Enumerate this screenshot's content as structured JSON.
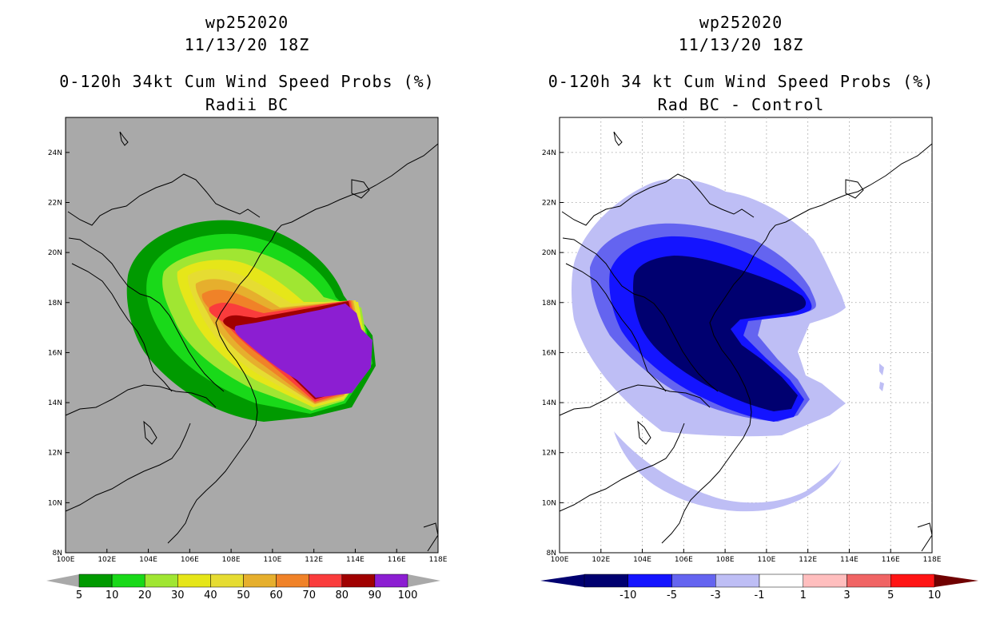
{
  "left_panel": {
    "storm_id": "wp252020",
    "datetime": "11/13/20 18Z",
    "product": "0-120h 34kt Cum Wind Speed Probs (%)",
    "subtitle": "Radii BC",
    "background_color": "#a9a9a9",
    "colorbar": {
      "labels": [
        "5",
        "10",
        "20",
        "30",
        "40",
        "50",
        "60",
        "70",
        "80",
        "90",
        "100"
      ],
      "colors": [
        "#009a00",
        "#19d919",
        "#a0e632",
        "#e6e619",
        "#e6dc32",
        "#e6af2d",
        "#f08228",
        "#fa3c3c",
        "#a00000",
        "#8c1ed2"
      ],
      "end_color": "#a9a9a9"
    }
  },
  "right_panel": {
    "storm_id": "wp252020",
    "datetime": "11/13/20 18Z",
    "product": "0-120h 34 kt Cum Wind Speed Probs (%)",
    "subtitle": "Rad BC - Control",
    "background_color": "#ffffff",
    "colorbar": {
      "labels": [
        "-10",
        "-5",
        "-3",
        "-1",
        "1",
        "3",
        "5",
        "10"
      ],
      "colors": [
        "#000070",
        "#1414ff",
        "#6464f0",
        "#bebef5",
        "#ffffff",
        "#ffbebe",
        "#f06464",
        "#ff1414"
      ],
      "left_end_color": "#000070",
      "right_end_color": "#700000"
    }
  },
  "axes": {
    "lon_labels": [
      "100E",
      "102E",
      "104E",
      "106E",
      "108E",
      "110E",
      "112E",
      "114E",
      "116E",
      "118E"
    ],
    "lat_labels": [
      "8N",
      "10N",
      "12N",
      "14N",
      "16N",
      "18N",
      "20N",
      "22N",
      "24N"
    ]
  }
}
